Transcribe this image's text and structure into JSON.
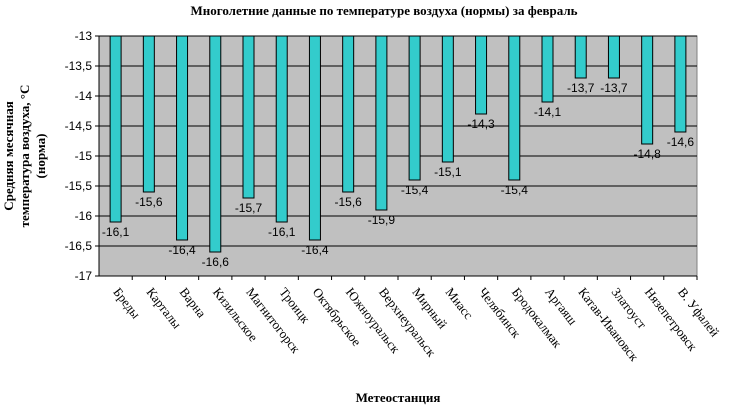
{
  "chart_data": {
    "type": "bar",
    "title": "Многолетние данные по температуре воздуха (нормы) за февраль",
    "xlabel": "Метеостанция",
    "ylabel_lines": [
      "Средняя месячная",
      "температура воздуха, °С",
      "(норма)"
    ],
    "ylim": [
      -17,
      -13
    ],
    "y_ticks": [
      "-13",
      "-13,5",
      "-14",
      "-14,5",
      "-15",
      "-15,5",
      "-16",
      "-16,5",
      "-17"
    ],
    "y_tick_values": [
      -13,
      -13.5,
      -14,
      -14.5,
      -15,
      -15.5,
      -16,
      -16.5,
      -17
    ],
    "grid": true,
    "categories": [
      "Бреды",
      "Карталы",
      "Варна",
      "Кизильское",
      "Магнитогорск",
      "Троицк",
      "Октябрьское",
      "Южноуральск",
      "Верхнеуральск",
      "Мирный",
      "Миасс",
      "Челябинск",
      "Бродокалмак",
      "Аргаяш",
      "Катав-Ивановск",
      "Златоуст",
      "Нязепетровск",
      "В. Уфалей"
    ],
    "values": [
      -16.1,
      -15.6,
      -16.4,
      -16.6,
      -15.7,
      -16.1,
      -16.4,
      -15.6,
      -15.9,
      -15.4,
      -15.1,
      -14.3,
      -15.4,
      -14.1,
      -13.7,
      -13.7,
      -14.8,
      -14.6
    ],
    "value_labels": [
      "-16,1",
      "-15,6",
      "-16,4",
      "-16,6",
      "-15,7",
      "-16,1",
      "-16,4",
      "-15,6",
      "-15,9",
      "-15,4",
      "-15,1",
      "-14,3",
      "-15,4",
      "-14,1",
      "-13,7",
      "-13,7",
      "-14,8",
      "-14,6"
    ],
    "colors": {
      "bar": "#33cccc",
      "plot_bg": "#c0c0c0",
      "grid": "#000000",
      "border": "#808080"
    }
  }
}
